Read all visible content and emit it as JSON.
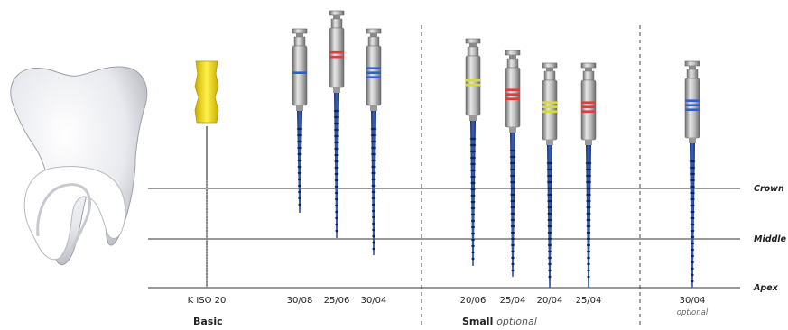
{
  "levels": [
    "Crown",
    "Middle",
    "Apex"
  ],
  "groups": [
    {
      "name": "Basic",
      "note": ""
    },
    {
      "name": "Small",
      "note": "optional"
    }
  ],
  "basic_file": {
    "label": "K ISO 20",
    "handle_color": "#f1d91a",
    "icon": "k-file-icon"
  },
  "files": [
    {
      "label": "30/08",
      "ring_colors": [
        "#2f5fd1"
      ],
      "sub": ""
    },
    {
      "label": "25/06",
      "ring_colors": [
        "#e23b3b",
        "#e23b3b"
      ],
      "sub": ""
    },
    {
      "label": "30/04",
      "ring_colors": [
        "#2f5fd1",
        "#2f5fd1",
        "#2f5fd1"
      ],
      "sub": ""
    },
    {
      "label": "20/06",
      "ring_colors": [
        "#d9d93a",
        "#d9d93a"
      ],
      "sub": ""
    },
    {
      "label": "25/04",
      "ring_colors": [
        "#e23b3b",
        "#e23b3b",
        "#e23b3b"
      ],
      "sub": ""
    },
    {
      "label": "20/04",
      "ring_colors": [
        "#d9d93a",
        "#d9d93a",
        "#d9d93a"
      ],
      "sub": ""
    },
    {
      "label": "25/04",
      "ring_colors": [
        "#e23b3b",
        "#e23b3b",
        "#e23b3b"
      ],
      "sub": ""
    },
    {
      "label": "30/04",
      "ring_colors": [
        "#2f5fd1",
        "#2f5fd1",
        "#2f5fd1"
      ],
      "sub": "optional"
    }
  ],
  "colors": {
    "shaft": "#1f3f8a",
    "handle": "#a8a8a8",
    "line": "#333333"
  }
}
